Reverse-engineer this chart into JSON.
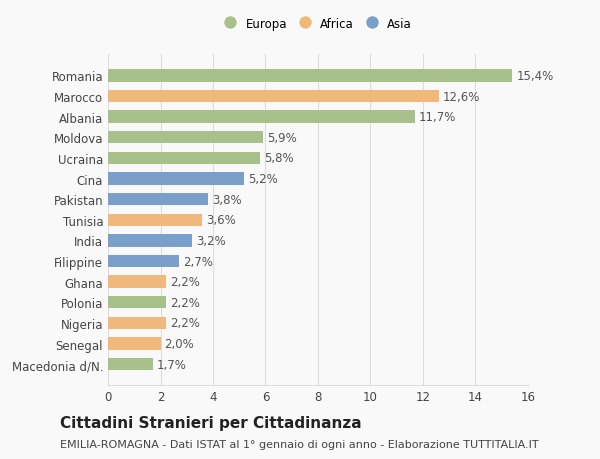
{
  "categories": [
    "Macedonia d/N.",
    "Senegal",
    "Nigeria",
    "Polonia",
    "Ghana",
    "Filippine",
    "India",
    "Tunisia",
    "Pakistan",
    "Cina",
    "Ucraina",
    "Moldova",
    "Albania",
    "Marocco",
    "Romania"
  ],
  "values": [
    1.7,
    2.0,
    2.2,
    2.2,
    2.2,
    2.7,
    3.2,
    3.6,
    3.8,
    5.2,
    5.8,
    5.9,
    11.7,
    12.6,
    15.4
  ],
  "labels": [
    "1,7%",
    "2,0%",
    "2,2%",
    "2,2%",
    "2,2%",
    "2,7%",
    "3,2%",
    "3,6%",
    "3,8%",
    "5,2%",
    "5,8%",
    "5,9%",
    "11,7%",
    "12,6%",
    "15,4%"
  ],
  "colors": [
    "#a8c08a",
    "#f0b87a",
    "#f0b87a",
    "#a8c08a",
    "#f0b87a",
    "#7a9fc9",
    "#7a9fc9",
    "#f0b87a",
    "#7a9fc9",
    "#7a9fc9",
    "#a8c08a",
    "#a8c08a",
    "#a8c08a",
    "#f0b87a",
    "#a8c08a"
  ],
  "legend_labels": [
    "Europa",
    "Africa",
    "Asia"
  ],
  "legend_colors": [
    "#a8c08a",
    "#f0b87a",
    "#7a9fc9"
  ],
  "title": "Cittadini Stranieri per Cittadinanza",
  "subtitle": "EMILIA-ROMAGNA - Dati ISTAT al 1° gennaio di ogni anno - Elaborazione TUTTITALIA.IT",
  "xlim": [
    0,
    16
  ],
  "xticks": [
    0,
    2,
    4,
    6,
    8,
    10,
    12,
    14,
    16
  ],
  "background_color": "#f9f9f9",
  "grid_color": "#dddddd",
  "bar_height": 0.6,
  "label_fontsize": 8.5,
  "tick_fontsize": 8.5,
  "title_fontsize": 11,
  "subtitle_fontsize": 8
}
